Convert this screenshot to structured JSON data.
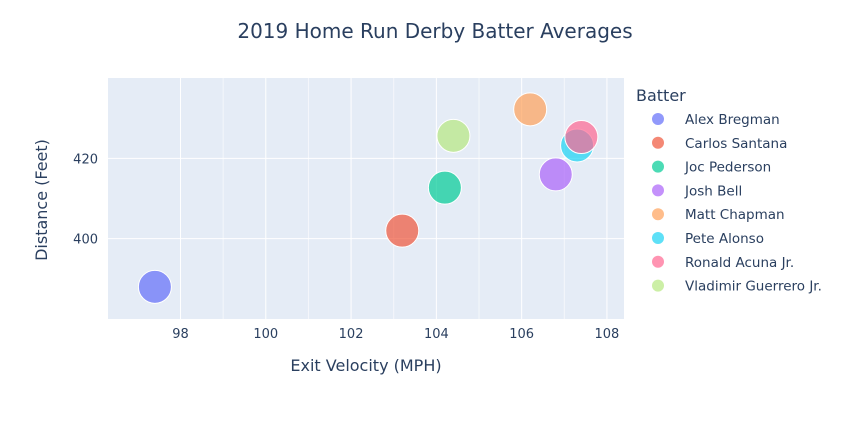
{
  "chart_data": {
    "type": "scatter",
    "title": "2019 Home Run Derby Batter Averages",
    "xlabel": "Exit Velocity (MPH)",
    "ylabel": "Distance (Feet)",
    "xlim": [
      96.3,
      108.4
    ],
    "ylim": [
      380,
      440
    ],
    "xticks": [
      98,
      100,
      102,
      104,
      106,
      108
    ],
    "yticks": [
      400,
      420
    ],
    "grid": true,
    "legend": {
      "title": "Batter",
      "placement": "right"
    },
    "series": [
      {
        "name": "Alex Bregman",
        "color": "#636efa",
        "x": 97.4,
        "y": 388
      },
      {
        "name": "Carlos Santana",
        "color": "#EF553B",
        "x": 103.2,
        "y": 402
      },
      {
        "name": "Joc Pederson",
        "color": "#00cc96",
        "x": 104.2,
        "y": 412.7
      },
      {
        "name": "Josh Bell",
        "color": "#ab63fa",
        "x": 106.8,
        "y": 416
      },
      {
        "name": "Matt Chapman",
        "color": "#FFA15A",
        "x": 106.2,
        "y": 432.2
      },
      {
        "name": "Pete Alonso",
        "color": "#19d3f3",
        "x": 107.3,
        "y": 423.2
      },
      {
        "name": "Ronald Acuna Jr.",
        "color": "#FF6692",
        "x": 107.4,
        "y": 425.3
      },
      {
        "name": "Vladimir Guerrero Jr.",
        "color": "#B6E880",
        "x": 104.4,
        "y": 425.6
      }
    ]
  }
}
